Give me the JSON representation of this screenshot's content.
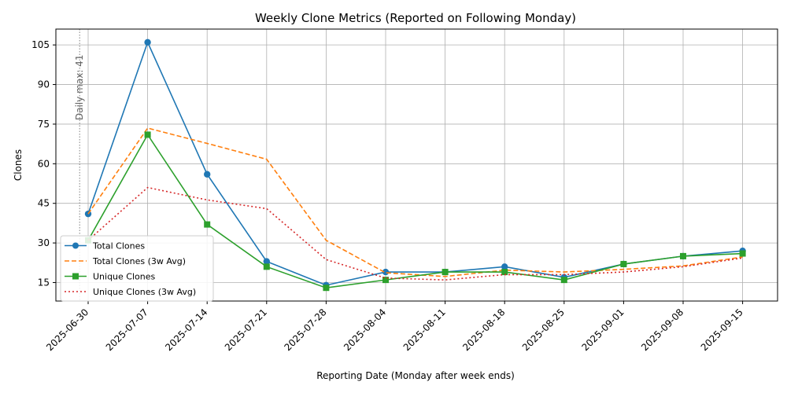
{
  "chart_data": {
    "type": "line",
    "title": "Weekly Clone Metrics (Reported on Following Monday)",
    "xlabel": "Reporting Date (Monday after week ends)",
    "ylabel": "Clones",
    "x": [
      "2025-06-30",
      "2025-07-07",
      "2025-07-14",
      "2025-07-21",
      "2025-07-28",
      "2025-08-04",
      "2025-08-11",
      "2025-08-18",
      "2025-08-25",
      "2025-09-01",
      "2025-09-08",
      "2025-09-15"
    ],
    "ylim": [
      8,
      111
    ],
    "yticks": [
      15,
      30,
      45,
      60,
      75,
      90,
      105
    ],
    "grid": true,
    "legend_position": "lower-left",
    "series": [
      {
        "name": "Total Clones",
        "color": "#1f77b4",
        "style": "solid",
        "marker": "circle",
        "values": [
          41,
          106,
          56,
          23,
          14,
          19,
          19,
          21,
          17,
          22,
          25,
          27
        ]
      },
      {
        "name": "Total Clones (3w Avg)",
        "color": "#ff7f0e",
        "style": "dashed",
        "marker": "none",
        "values": [
          41,
          73.5,
          67.7,
          61.7,
          31,
          18.7,
          17.3,
          19.7,
          19,
          20,
          21.3,
          24.7
        ]
      },
      {
        "name": "Unique Clones",
        "color": "#2ca02c",
        "style": "solid",
        "marker": "square",
        "values": [
          31,
          71,
          37,
          21,
          13,
          16,
          19,
          19,
          16,
          22,
          25,
          26
        ]
      },
      {
        "name": "Unique Clones (3w Avg)",
        "color": "#d62728",
        "style": "dotted",
        "marker": "none",
        "values": [
          31,
          51,
          46.3,
          43,
          23.7,
          16.7,
          16,
          18,
          18,
          19,
          21,
          24.3
        ]
      }
    ],
    "annotation": {
      "text": "Daily max: 41",
      "color": "#808080"
    }
  }
}
